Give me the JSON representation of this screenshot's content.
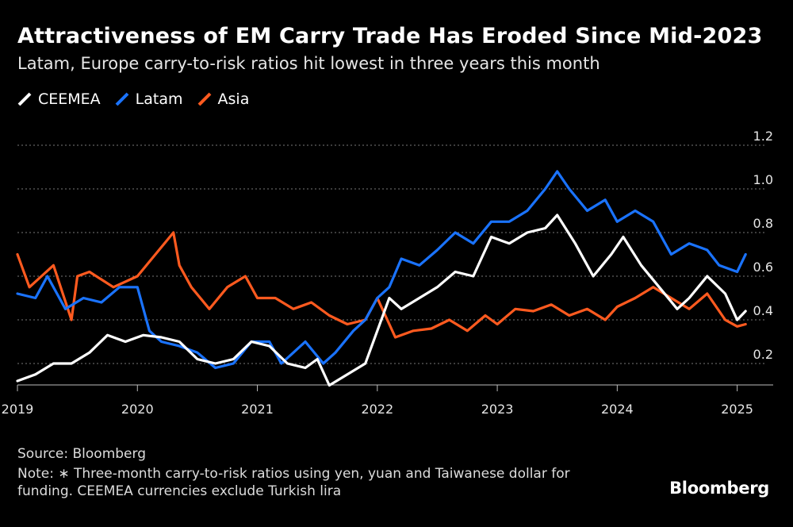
{
  "chart_data": {
    "type": "line",
    "title": "Attractiveness of EM Carry Trade Has Eroded Since Mid-2023",
    "subtitle": "Latam, Europe carry-to-risk ratios hit lowest in three years this month",
    "xlabel": "",
    "ylabel": "",
    "xlim": [
      2019,
      2025.3
    ],
    "ylim": [
      0.1,
      1.2
    ],
    "yticks": [
      0.2,
      0.4,
      0.6,
      0.8,
      1.0,
      1.2
    ],
    "ytick_labels": [
      "0.2",
      "0.4",
      "0.6",
      "0.8",
      "1.0",
      "1.2"
    ],
    "xticks": [
      2019,
      2020,
      2021,
      2022,
      2023,
      2024,
      2025
    ],
    "xtick_labels": [
      "2019",
      "2020",
      "2021",
      "2022",
      "2023",
      "2024",
      "2025"
    ],
    "grid": "horizontal-dotted",
    "legend": "top-left",
    "series": [
      {
        "name": "CEEMEA",
        "color": "#ffffff",
        "x": [
          2019.0,
          2019.15,
          2019.3,
          2019.45,
          2019.6,
          2019.75,
          2019.9,
          2020.05,
          2020.2,
          2020.35,
          2020.5,
          2020.65,
          2020.8,
          2020.95,
          2021.1,
          2021.25,
          2021.4,
          2021.5,
          2021.6,
          2021.75,
          2021.9,
          2022.0,
          2022.1,
          2022.2,
          2022.35,
          2022.5,
          2022.65,
          2022.8,
          2022.95,
          2023.1,
          2023.25,
          2023.4,
          2023.5,
          2023.65,
          2023.8,
          2023.95,
          2024.05,
          2024.2,
          2024.35,
          2024.5,
          2024.6,
          2024.75,
          2024.9,
          2025.0,
          2025.07
        ],
        "values": [
          0.12,
          0.15,
          0.2,
          0.2,
          0.25,
          0.33,
          0.3,
          0.33,
          0.32,
          0.3,
          0.22,
          0.2,
          0.22,
          0.3,
          0.28,
          0.2,
          0.18,
          0.22,
          0.1,
          0.15,
          0.2,
          0.35,
          0.5,
          0.45,
          0.5,
          0.55,
          0.62,
          0.6,
          0.78,
          0.75,
          0.8,
          0.82,
          0.88,
          0.75,
          0.6,
          0.7,
          0.78,
          0.65,
          0.55,
          0.45,
          0.5,
          0.6,
          0.52,
          0.4,
          0.44
        ]
      },
      {
        "name": "Latam",
        "color": "#1a73ff",
        "x": [
          2019.0,
          2019.15,
          2019.25,
          2019.4,
          2019.55,
          2019.7,
          2019.85,
          2020.0,
          2020.1,
          2020.2,
          2020.35,
          2020.5,
          2020.65,
          2020.8,
          2020.95,
          2021.1,
          2021.2,
          2021.3,
          2021.4,
          2021.55,
          2021.65,
          2021.8,
          2021.9,
          2022.0,
          2022.1,
          2022.2,
          2022.35,
          2022.5,
          2022.65,
          2022.8,
          2022.95,
          2023.1,
          2023.25,
          2023.4,
          2023.5,
          2023.6,
          2023.75,
          2023.9,
          2024.0,
          2024.15,
          2024.3,
          2024.45,
          2024.6,
          2024.75,
          2024.85,
          2025.0,
          2025.07
        ],
        "values": [
          0.52,
          0.5,
          0.6,
          0.45,
          0.5,
          0.48,
          0.55,
          0.55,
          0.35,
          0.3,
          0.28,
          0.25,
          0.18,
          0.2,
          0.3,
          0.3,
          0.2,
          0.25,
          0.3,
          0.2,
          0.25,
          0.35,
          0.4,
          0.5,
          0.55,
          0.68,
          0.65,
          0.72,
          0.8,
          0.75,
          0.85,
          0.85,
          0.9,
          1.0,
          1.08,
          1.0,
          0.9,
          0.95,
          0.85,
          0.9,
          0.85,
          0.7,
          0.75,
          0.72,
          0.65,
          0.62,
          0.7
        ]
      },
      {
        "name": "Asia",
        "color": "#ff5a1f",
        "x": [
          2019.0,
          2019.1,
          2019.2,
          2019.3,
          2019.45,
          2019.5,
          2019.6,
          2019.8,
          2020.0,
          2020.15,
          2020.3,
          2020.35,
          2020.45,
          2020.6,
          2020.75,
          2020.9,
          2021.0,
          2021.15,
          2021.3,
          2021.45,
          2021.6,
          2021.75,
          2021.9,
          2022.0,
          2022.15,
          2022.3,
          2022.45,
          2022.6,
          2022.75,
          2022.9,
          2023.0,
          2023.15,
          2023.3,
          2023.45,
          2023.6,
          2023.75,
          2023.9,
          2024.0,
          2024.15,
          2024.3,
          2024.45,
          2024.6,
          2024.75,
          2024.9,
          2025.0,
          2025.07
        ],
        "values": [
          0.7,
          0.55,
          0.6,
          0.65,
          0.4,
          0.6,
          0.62,
          0.55,
          0.6,
          0.7,
          0.8,
          0.65,
          0.55,
          0.45,
          0.55,
          0.6,
          0.5,
          0.5,
          0.45,
          0.48,
          0.42,
          0.38,
          0.4,
          0.5,
          0.32,
          0.35,
          0.36,
          0.4,
          0.35,
          0.42,
          0.38,
          0.45,
          0.44,
          0.47,
          0.42,
          0.45,
          0.4,
          0.46,
          0.5,
          0.55,
          0.5,
          0.45,
          0.52,
          0.4,
          0.37,
          0.38
        ]
      }
    ]
  },
  "legend_items": [
    {
      "label": "CEEMEA",
      "color": "#ffffff"
    },
    {
      "label": "Latam",
      "color": "#1a73ff"
    },
    {
      "label": "Asia",
      "color": "#ff5a1f"
    }
  ],
  "footer": {
    "source": "Source: Bloomberg",
    "note": "Note: ∗ Three-month carry-to-risk ratios using yen, yuan and Taiwanese dollar for funding. CEEMEA currencies exclude Turkish lira",
    "logo": "Bloomberg"
  }
}
